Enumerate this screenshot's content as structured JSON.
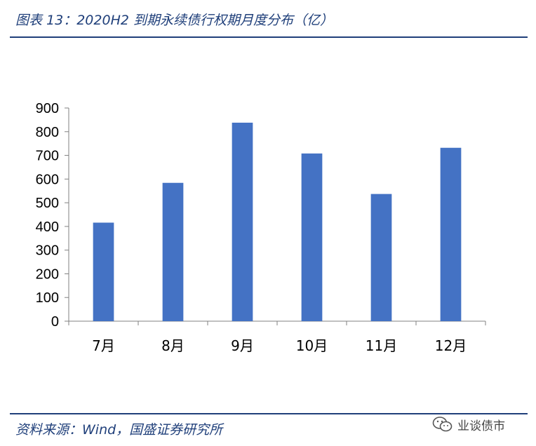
{
  "header": {
    "title": "图表 13：2020H2 到期永续债行权期月度分布（亿）"
  },
  "footer": {
    "source": "资料来源：Wind，国盛证券研究所"
  },
  "watermark": {
    "text": "业谈债市",
    "icon": "wechat-icon"
  },
  "chart_data": {
    "type": "bar",
    "title": "",
    "xlabel": "",
    "ylabel": "",
    "categories": [
      "7月",
      "8月",
      "9月",
      "10月",
      "11月",
      "12月"
    ],
    "series": [
      {
        "values": [
          416,
          584,
          838,
          708,
          537,
          732
        ]
      }
    ],
    "ylim": [
      0,
      900
    ],
    "yticks": [
      0,
      100,
      200,
      300,
      400,
      500,
      600,
      700,
      800,
      900
    ],
    "bar_color": "#4472c4",
    "grid": false,
    "legend": "none"
  }
}
